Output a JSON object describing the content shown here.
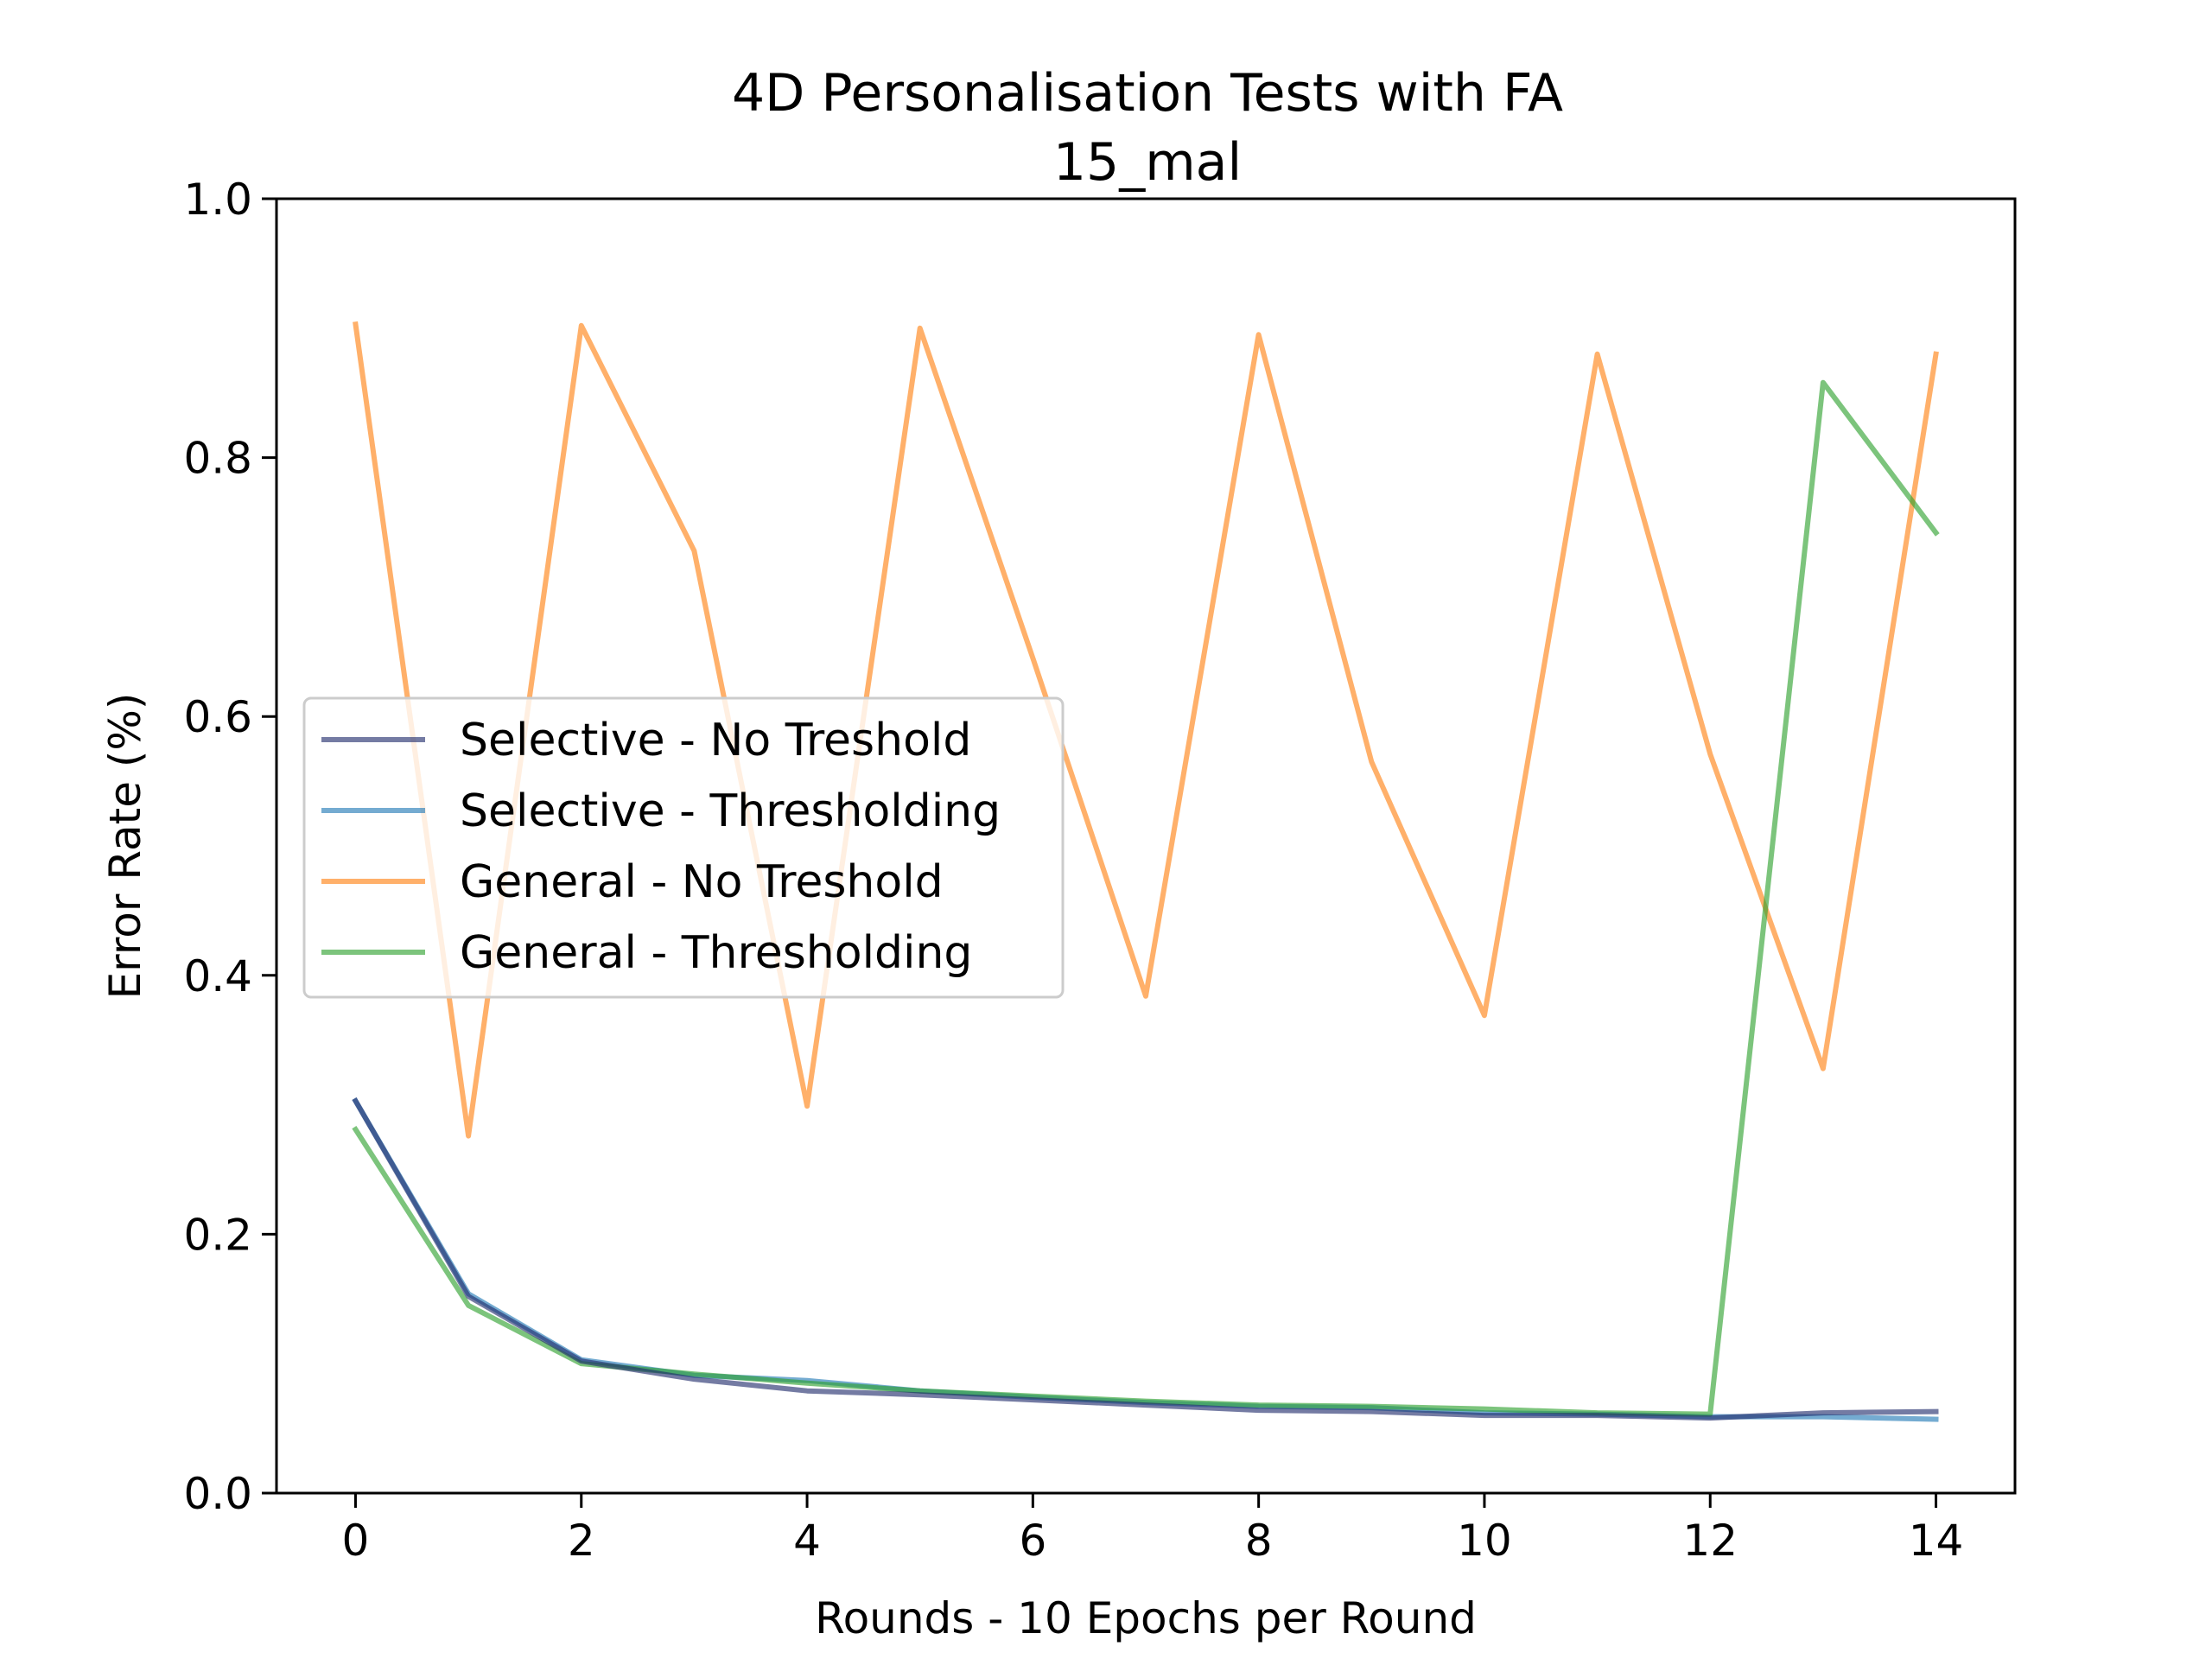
{
  "chart_data": {
    "type": "line",
    "title": "4D Personalisation Tests with FA",
    "subtitle": "15_mal",
    "xlabel": "Rounds - 10 Epochs per Round",
    "ylabel": "Error Rate (%)",
    "xlim": [
      -0.7,
      14.7
    ],
    "ylim": [
      0.0,
      1.0
    ],
    "xticks": [
      0,
      2,
      4,
      6,
      8,
      10,
      12,
      14
    ],
    "yticks": [
      0.0,
      0.2,
      0.4,
      0.6,
      0.8,
      1.0
    ],
    "xtick_labels": [
      "0",
      "2",
      "4",
      "6",
      "8",
      "10",
      "12",
      "14"
    ],
    "ytick_labels": [
      "0.0",
      "0.2",
      "0.4",
      "0.6",
      "0.8",
      "1.0"
    ],
    "grid": false,
    "legend_position": "center-left",
    "x": [
      0,
      1,
      2,
      3,
      4,
      5,
      6,
      7,
      8,
      9,
      10,
      11,
      12,
      13,
      14
    ],
    "series": [
      {
        "name": "Selective - No Treshold",
        "color": "#1f2a6b",
        "values": [
          0.303,
          0.152,
          0.102,
          0.088,
          0.079,
          0.076,
          0.072,
          0.068,
          0.064,
          0.063,
          0.06,
          0.06,
          0.058,
          0.062,
          0.063
        ]
      },
      {
        "name": "Selective - Thresholding",
        "color": "#1f77b4",
        "values": [
          0.303,
          0.154,
          0.103,
          0.091,
          0.087,
          0.079,
          0.074,
          0.07,
          0.067,
          0.066,
          0.062,
          0.061,
          0.059,
          0.059,
          0.057
        ]
      },
      {
        "name": "General - No Treshold",
        "color": "#ff7f0e",
        "values": [
          0.903,
          0.276,
          0.902,
          0.728,
          0.299,
          0.9,
          0.645,
          0.384,
          0.895,
          0.565,
          0.369,
          0.88,
          0.571,
          0.328,
          0.88
        ]
      },
      {
        "name": "General - Thresholding",
        "color": "#2ca02c",
        "values": [
          0.281,
          0.145,
          0.1,
          0.092,
          0.085,
          0.079,
          0.075,
          0.071,
          0.068,
          0.067,
          0.065,
          0.062,
          0.061,
          0.858,
          0.742
        ]
      }
    ]
  }
}
